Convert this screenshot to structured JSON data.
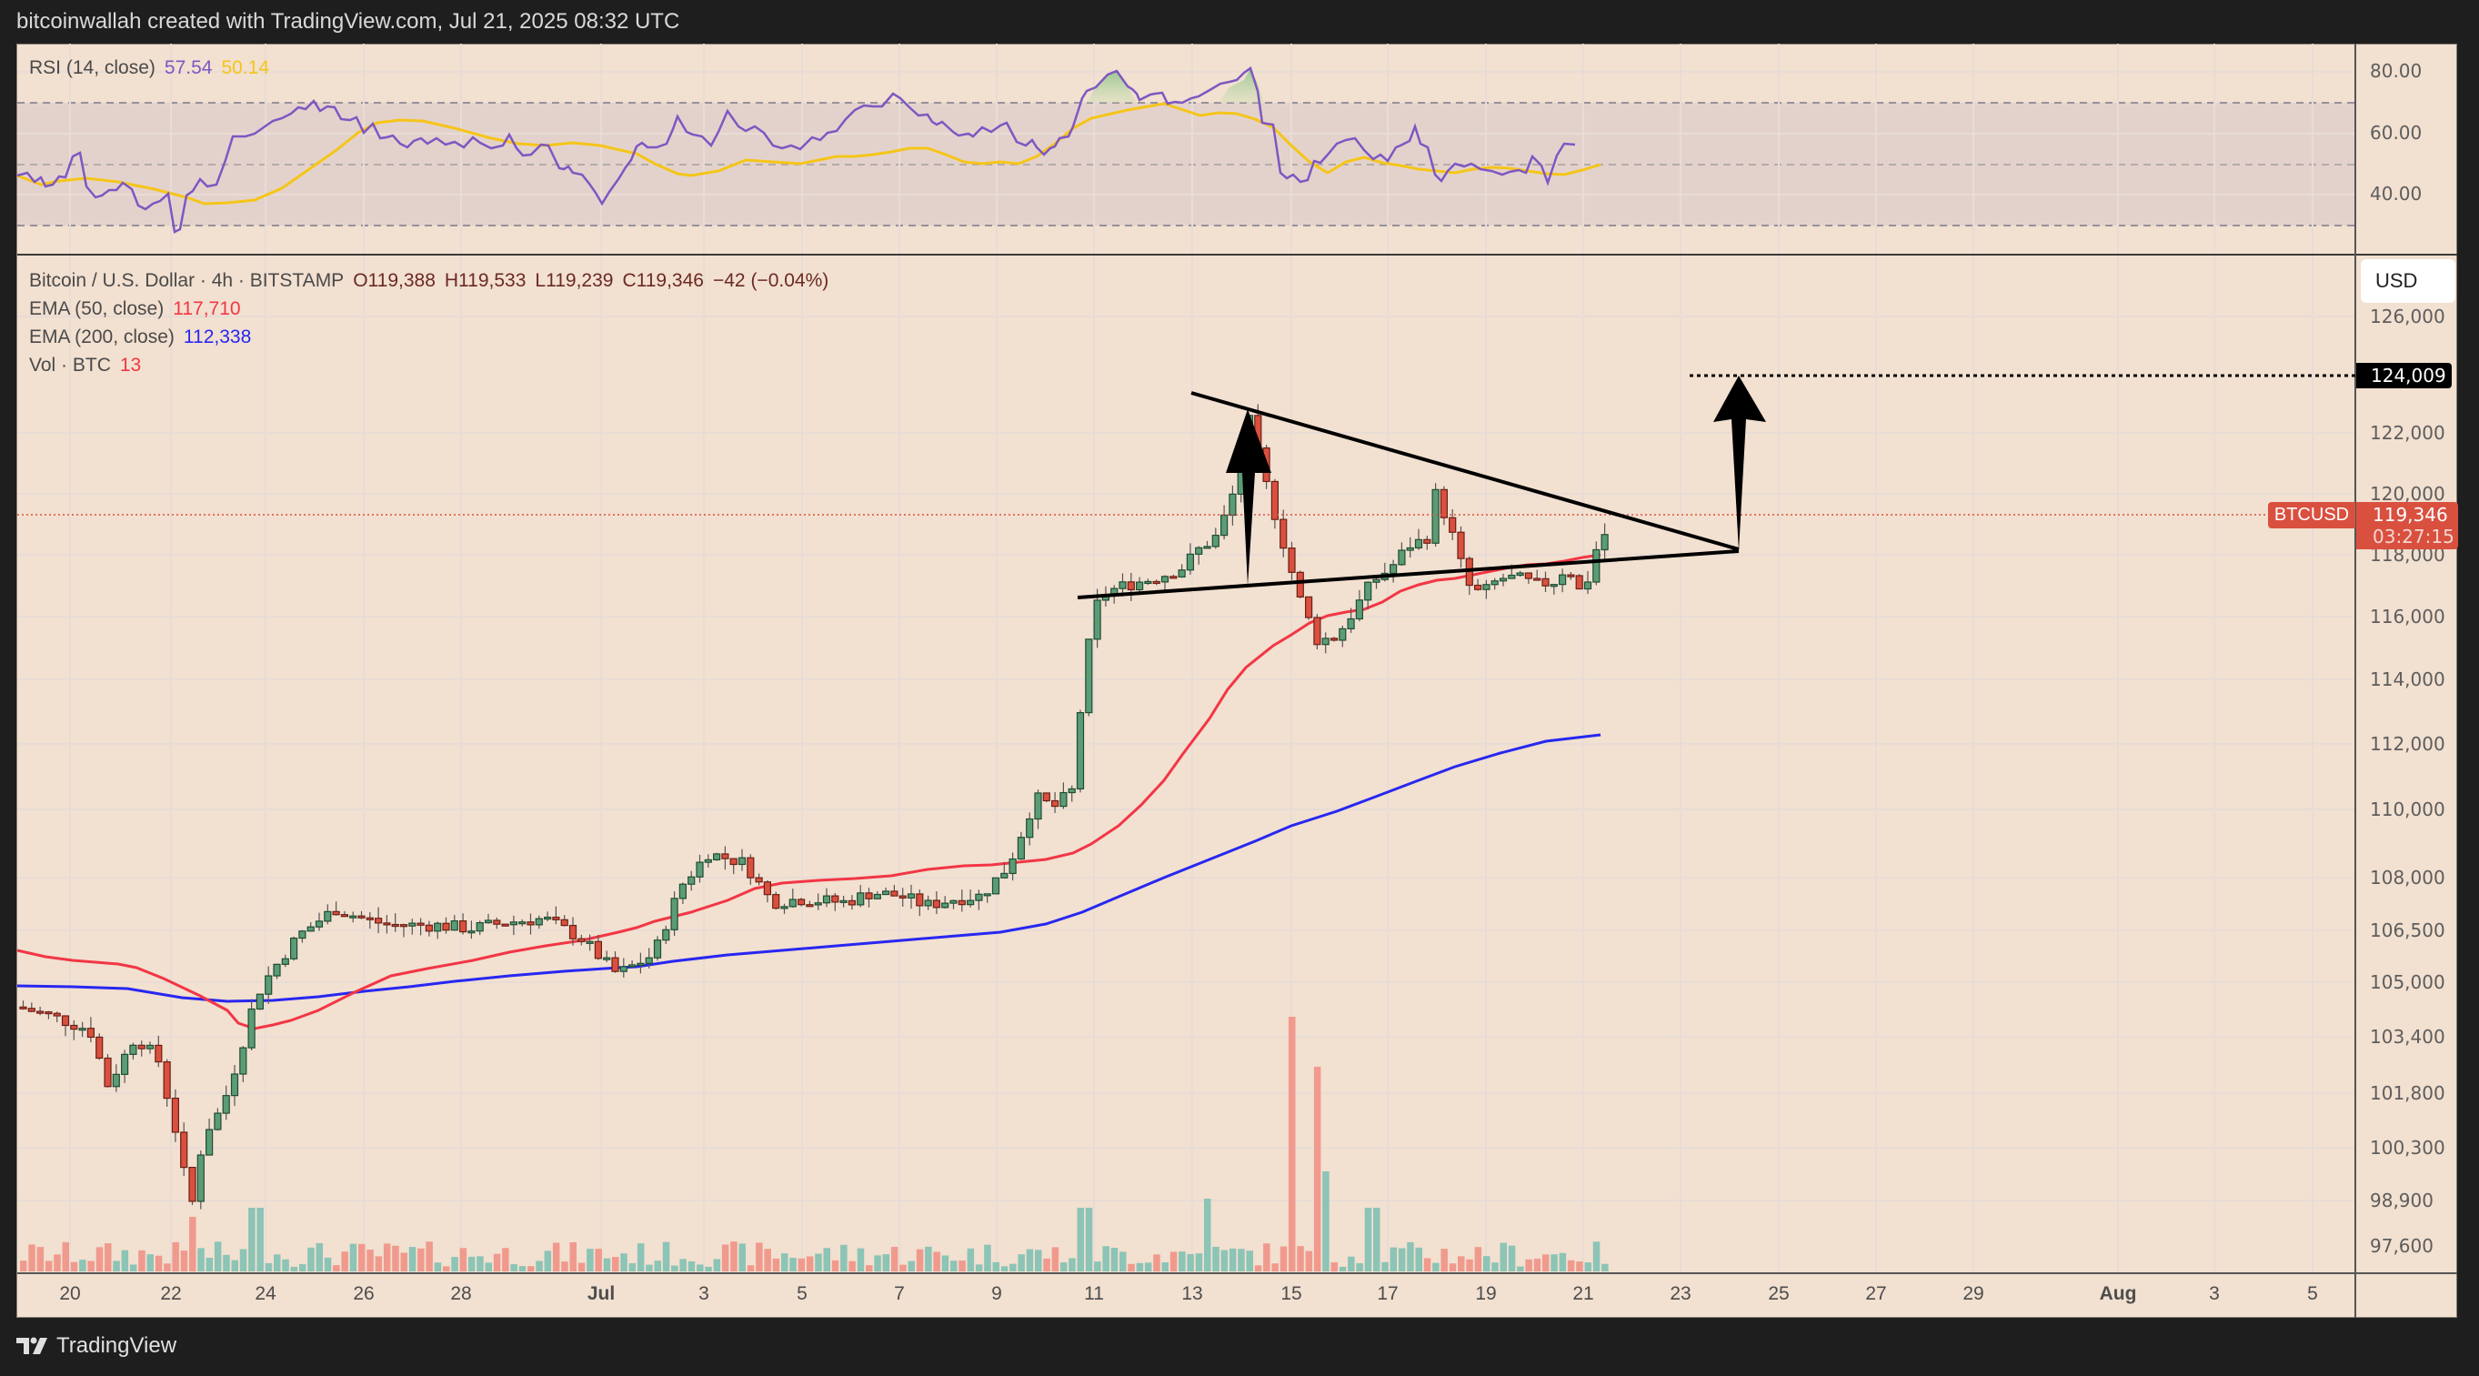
{
  "header": {
    "attribution": "bitcoinwallah created with TradingView.com, Jul 21, 2025 08:32 UTC"
  },
  "rsi_pane": {
    "label": "RSI (14, close)",
    "rsi_value": "57.54",
    "rsi_ma_value": "50.14",
    "rsi_color": "#7e57c2",
    "rsi_ma_color": "#f5c518",
    "scale": [
      "80.00",
      "60.00",
      "40.00"
    ]
  },
  "price_pane": {
    "symbol_line": "Bitcoin / U.S. Dollar · 4h · BITSTAMP",
    "open": "O119,388",
    "high": "H119,533",
    "low": "L119,239",
    "close": "C119,346",
    "change": "−42 (−0.04%)",
    "ema50_label": "EMA (50, close)",
    "ema50_value": "117,710",
    "ema200_label": "EMA (200, close)",
    "ema200_value": "112,338",
    "vol_label": "Vol · BTC",
    "vol_value": "13",
    "currency": "USD",
    "target_price": "124,009",
    "ticker_tag": "BTCUSD",
    "last_price": "119,346",
    "countdown": "03:27:15",
    "colors": {
      "up": "#5b9c76",
      "down": "#d9503f",
      "ema50": "#f23645",
      "ema200": "#2727f0",
      "vol_up": "#8cc4b6",
      "vol_down": "#f09a8e",
      "background": "#f2e0d0"
    }
  },
  "price_axis": [
    "126,000",
    "124,009",
    "122,000",
    "120,000",
    "118,000",
    "116,000",
    "114,000",
    "112,000",
    "110,000",
    "108,000",
    "106,500",
    "105,000",
    "103,400",
    "101,800",
    "100,300",
    "98,900",
    "97,600"
  ],
  "time_axis": [
    "20",
    "22",
    "24",
    "26",
    "28",
    "Jul",
    "3",
    "5",
    "7",
    "9",
    "11",
    "13",
    "15",
    "17",
    "19",
    "21",
    "23",
    "25",
    "27",
    "29",
    "Aug",
    "3",
    "5"
  ],
  "brand": {
    "name": "TradingView"
  },
  "chart_data": [
    {
      "type": "candlestick",
      "title": "Bitcoin / U.S. Dollar · 4h · BITSTAMP",
      "ylabel": "USD",
      "ylim": [
        96800,
        126800
      ],
      "x_range": [
        "Jun 19",
        "Aug 6"
      ],
      "last": {
        "open": 119388,
        "high": 119533,
        "low": 119239,
        "close": 119346,
        "change": -42,
        "change_pct": -0.04
      },
      "key_points": [
        {
          "date": "Jun 20",
          "close": 104800
        },
        {
          "date": "Jun 22",
          "low": 98300,
          "close": 100900
        },
        {
          "date": "Jun 24",
          "close": 105300
        },
        {
          "date": "Jun 26",
          "close": 107500
        },
        {
          "date": "Jun 30",
          "close": 107200
        },
        {
          "date": "Jul 1",
          "close": 105500
        },
        {
          "date": "Jul 3",
          "close": 109500
        },
        {
          "date": "Jul 5",
          "close": 108000
        },
        {
          "date": "Jul 7",
          "close": 108300
        },
        {
          "date": "Jul 9",
          "close": 108700
        },
        {
          "date": "Jul 10",
          "close": 111200
        },
        {
          "date": "Jul 11",
          "close": 117500
        },
        {
          "date": "Jul 13",
          "close": 118900
        },
        {
          "date": "Jul 14",
          "high": 123100,
          "close": 120000
        },
        {
          "date": "Jul 15",
          "low": 115800,
          "close": 117000
        },
        {
          "date": "Jul 17",
          "close": 118200
        },
        {
          "date": "Jul 18",
          "high": 120900,
          "close": 118000
        },
        {
          "date": "Jul 19",
          "close": 117900
        },
        {
          "date": "Jul 21",
          "close": 119346
        }
      ],
      "indicators": [
        {
          "name": "EMA (50, close)",
          "last": 117710,
          "color": "#f23645"
        },
        {
          "name": "EMA (200, close)",
          "last": 112338,
          "color": "#2727f0"
        }
      ],
      "annotations": [
        {
          "type": "symmetrical-triangle",
          "upper_line": [
            [
              "Jul 13",
              122800
            ],
            [
              "Jul 24",
              118100
            ]
          ],
          "lower_line": [
            [
              "Jul 11",
              116600
            ],
            [
              "Jul 24",
              118100
            ]
          ]
        },
        {
          "type": "arrow-up",
          "label": "flagpole",
          "from": [
            "Jul 14",
            117000
          ],
          "to": [
            "Jul 14",
            123000
          ]
        },
        {
          "type": "arrow-up",
          "label": "projected breakout",
          "from": [
            "Jul 24",
            118100
          ],
          "to": [
            "Jul 24",
            124009
          ]
        },
        {
          "type": "horizontal-dotted",
          "price": 124009
        }
      ]
    },
    {
      "type": "bar",
      "title": "Vol · BTC",
      "last": 13,
      "notes": "Volume spikes on Jul 14-15 (red bars) much larger than average"
    },
    {
      "type": "line",
      "title": "RSI (14, close)",
      "series": [
        {
          "name": "RSI",
          "last": 57.54
        },
        {
          "name": "RSI-based MA",
          "last": 50.14
        }
      ],
      "ylim": [
        20,
        90
      ],
      "bands": [
        30,
        50,
        70
      ],
      "notes": "RSI overbought (>70) around Jul 10-11 and Jul 14"
    }
  ]
}
